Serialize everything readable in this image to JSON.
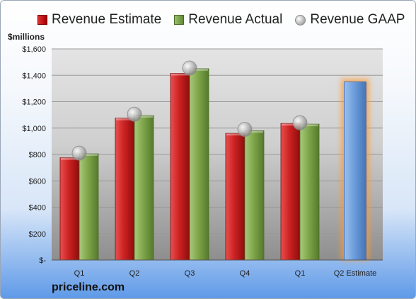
{
  "chart_data": {
    "type": "bar",
    "title": "",
    "unit_label": "$millions",
    "categories": [
      "Q1",
      "Q2",
      "Q3",
      "Q4",
      "Q1",
      "Q2 Estimate"
    ],
    "series": [
      {
        "name": "Revenue Estimate",
        "kind": "bar",
        "color": "#c62828",
        "values": [
          775,
          1075,
          1415,
          960,
          1035,
          null
        ]
      },
      {
        "name": "Revenue Actual",
        "kind": "bar",
        "color": "#7ba046",
        "values": [
          805,
          1095,
          1450,
          980,
          1030,
          null
        ]
      },
      {
        "name": "Revenue GAAP",
        "kind": "marker",
        "color": "#b0b0b0",
        "values": [
          810,
          1105,
          1455,
          990,
          1040,
          null
        ]
      },
      {
        "name": "",
        "kind": "highlight-bar",
        "color": "#6f9fd8",
        "values": [
          null,
          null,
          null,
          null,
          null,
          1350
        ]
      }
    ],
    "ylim": [
      0,
      1600
    ],
    "yticks": [
      0,
      200,
      400,
      600,
      800,
      1000,
      1200,
      1400,
      1600
    ],
    "ytick_labels": [
      "$-",
      "$200",
      "$400",
      "$600",
      "$800",
      "$1,000",
      "$1,200",
      "$1,400",
      "$1,600"
    ],
    "grid": true,
    "legend": "top"
  },
  "footer": {
    "brand": "priceline.com"
  }
}
